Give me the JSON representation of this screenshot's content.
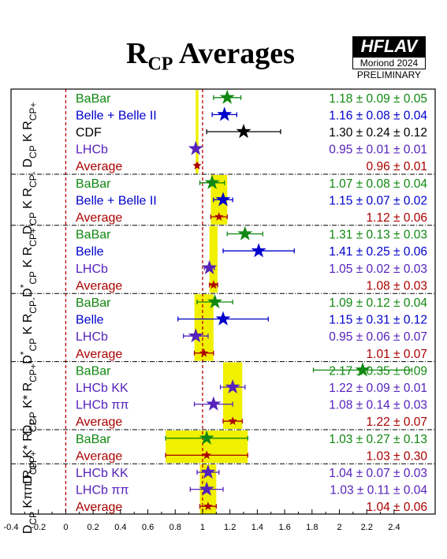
{
  "header": {
    "title_main": "R",
    "title_sub": "CP",
    "title_rest": " Averages",
    "logo_top": "HFLAV",
    "logo_mid": "Moriond 2024",
    "logo_bottom": "PRELIMINARY"
  },
  "colors": {
    "green": "#118811",
    "blue": "#0000cc",
    "black": "#000000",
    "purple": "#5522bb",
    "red": "#aa0000",
    "band": "#f0f000"
  },
  "chart_data": {
    "type": "forest",
    "xlim": [
      -0.4,
      2.7
    ],
    "xticks": [
      -0.4,
      -0.2,
      0,
      0.2,
      0.4,
      0.6,
      0.8,
      1,
      1.2,
      1.4,
      1.6,
      1.8,
      2,
      2.2,
      2.4
    ],
    "xtick_labels": [
      "-0.4",
      "-0.2",
      "0",
      "0.2",
      "0.4",
      "0.6",
      "0.8",
      "1",
      "1.2",
      "1.4",
      "1.6",
      "1.8",
      "2",
      "2.2",
      "2.4"
    ],
    "reference_lines": [
      0,
      1
    ],
    "groups": [
      {
        "label": "D_CP K R_CP+",
        "label_parts": {
          "pre": "D",
          "pre_sub": "CP",
          "mid": " K R",
          "sub": "CP+"
        },
        "band": [
          0.95,
          0.97
        ],
        "rows": [
          {
            "name": "BaBar",
            "color": "green",
            "text": "1.18 ± 0.09 ± 0.05",
            "value": 1.18,
            "err_lo": 0.1,
            "err_hi": 0.1
          },
          {
            "name": "Belle + Belle II",
            "color": "blue",
            "text": "1.16 ± 0.08 ± 0.04",
            "value": 1.16,
            "err_lo": 0.09,
            "err_hi": 0.09
          },
          {
            "name": "CDF",
            "color": "black",
            "text": "1.30 ± 0.24 ± 0.12",
            "value": 1.3,
            "err_lo": 0.27,
            "err_hi": 0.27
          },
          {
            "name": "LHCb",
            "color": "purple",
            "text": "0.95 ± 0.01 ± 0.01",
            "value": 0.95,
            "err_lo": 0.014,
            "err_hi": 0.014
          },
          {
            "name": "Average",
            "color": "red",
            "text": "0.96 ± 0.01",
            "value": 0.96,
            "err_lo": 0.01,
            "err_hi": 0.01,
            "average": true
          }
        ]
      },
      {
        "label": "D_CP K R_CP-",
        "label_parts": {
          "pre": "D",
          "pre_sub": "CP",
          "mid": " K R",
          "sub": "CP-"
        },
        "band": [
          1.06,
          1.18
        ],
        "rows": [
          {
            "name": "BaBar",
            "color": "green",
            "text": "1.07 ± 0.08 ± 0.04",
            "value": 1.07,
            "err_lo": 0.09,
            "err_hi": 0.09
          },
          {
            "name": "Belle + Belle II",
            "color": "blue",
            "text": "1.15 ± 0.07 ± 0.02",
            "value": 1.15,
            "err_lo": 0.07,
            "err_hi": 0.07
          },
          {
            "name": "Average",
            "color": "red",
            "text": "1.12 ± 0.06",
            "value": 1.12,
            "err_lo": 0.06,
            "err_hi": 0.06,
            "average": true
          }
        ]
      },
      {
        "label": "D*_CP K R_CP+",
        "label_parts": {
          "pre": "D",
          "pre_sup": "*",
          "pre_sub": "CP",
          "mid": " K R",
          "sub": "CP+"
        },
        "band": [
          1.05,
          1.11
        ],
        "rows": [
          {
            "name": "BaBar",
            "color": "green",
            "text": "1.31 ± 0.13 ± 0.03",
            "value": 1.31,
            "err_lo": 0.13,
            "err_hi": 0.13
          },
          {
            "name": "Belle",
            "color": "blue",
            "text": "1.41 ± 0.25 ± 0.06",
            "value": 1.41,
            "err_lo": 0.26,
            "err_hi": 0.26
          },
          {
            "name": "LHCb",
            "color": "purple",
            "text": "1.05 ± 0.02 ± 0.03",
            "value": 1.05,
            "err_lo": 0.036,
            "err_hi": 0.036
          },
          {
            "name": "Average",
            "color": "red",
            "text": "1.08 ± 0.03",
            "value": 1.08,
            "err_lo": 0.03,
            "err_hi": 0.03,
            "average": true
          }
        ]
      },
      {
        "label": "D*_CP K R_CP-",
        "label_parts": {
          "pre": "D",
          "pre_sup": "*",
          "pre_sub": "CP",
          "mid": " K R",
          "sub": "CP-"
        },
        "band": [
          0.94,
          1.08
        ],
        "rows": [
          {
            "name": "BaBar",
            "color": "green",
            "text": "1.09 ± 0.12 ± 0.04",
            "value": 1.09,
            "err_lo": 0.13,
            "err_hi": 0.13
          },
          {
            "name": "Belle",
            "color": "blue",
            "text": "1.15 ± 0.31 ± 0.12",
            "value": 1.15,
            "err_lo": 0.33,
            "err_hi": 0.33
          },
          {
            "name": "LHCb",
            "color": "purple",
            "text": "0.95 ± 0.06 ± 0.07",
            "value": 0.95,
            "err_lo": 0.09,
            "err_hi": 0.09
          },
          {
            "name": "Average",
            "color": "red",
            "text": "1.01 ± 0.07",
            "value": 1.01,
            "err_lo": 0.07,
            "err_hi": 0.07,
            "average": true
          }
        ]
      },
      {
        "label": "D_CP K* R_CP+",
        "label_parts": {
          "pre": "D",
          "pre_sub": "CP",
          "mid": " K* R",
          "sub": "CP+"
        },
        "band": [
          1.15,
          1.29
        ],
        "rows": [
          {
            "name": "BaBar",
            "color": "green",
            "text": "2.17 ± 0.35 ± 0.09",
            "value": 2.17,
            "err_lo": 0.36,
            "err_hi": 0.36
          },
          {
            "name": "LHCb KK",
            "color": "purple",
            "text": "1.22 ± 0.09 ± 0.01",
            "value": 1.22,
            "err_lo": 0.09,
            "err_hi": 0.09
          },
          {
            "name": "LHCb ππ",
            "color": "purple",
            "text": "1.08 ± 0.14 ± 0.03",
            "value": 1.08,
            "err_lo": 0.14,
            "err_hi": 0.14
          },
          {
            "name": "Average",
            "color": "red",
            "text": "1.22 ± 0.07",
            "value": 1.22,
            "err_lo": 0.07,
            "err_hi": 0.07,
            "average": true
          }
        ]
      },
      {
        "label": "D_CP K* R_CP-",
        "label_parts": {
          "pre": "D",
          "pre_sub": "CP",
          "mid": " K* R",
          "sub": "CP-"
        },
        "band": [
          0.73,
          1.33
        ],
        "rows": [
          {
            "name": "BaBar",
            "color": "green",
            "text": "1.03 ± 0.27 ± 0.13",
            "value": 1.03,
            "err_lo": 0.3,
            "err_hi": 0.3
          },
          {
            "name": "Average",
            "color": "red",
            "text": "1.03 ± 0.30",
            "value": 1.03,
            "err_lo": 0.3,
            "err_hi": 0.3,
            "average": true
          }
        ]
      },
      {
        "label": "D_CP Kππ R_CP+",
        "label_parts": {
          "pre": "D",
          "pre_sub": "CP",
          "mid": " Kππ R",
          "sub": "CP+"
        },
        "band": [
          0.98,
          1.1
        ],
        "rows": [
          {
            "name": "LHCb KK",
            "color": "purple",
            "text": "1.04 ± 0.07 ± 0.03",
            "value": 1.04,
            "err_lo": 0.08,
            "err_hi": 0.08
          },
          {
            "name": "LHCb ππ",
            "color": "purple",
            "text": "1.03 ± 0.11 ± 0.04",
            "value": 1.03,
            "err_lo": 0.12,
            "err_hi": 0.12
          },
          {
            "name": "Average",
            "color": "red",
            "text": "1.04 ± 0.06",
            "value": 1.04,
            "err_lo": 0.06,
            "err_hi": 0.06,
            "average": true
          }
        ]
      }
    ]
  }
}
